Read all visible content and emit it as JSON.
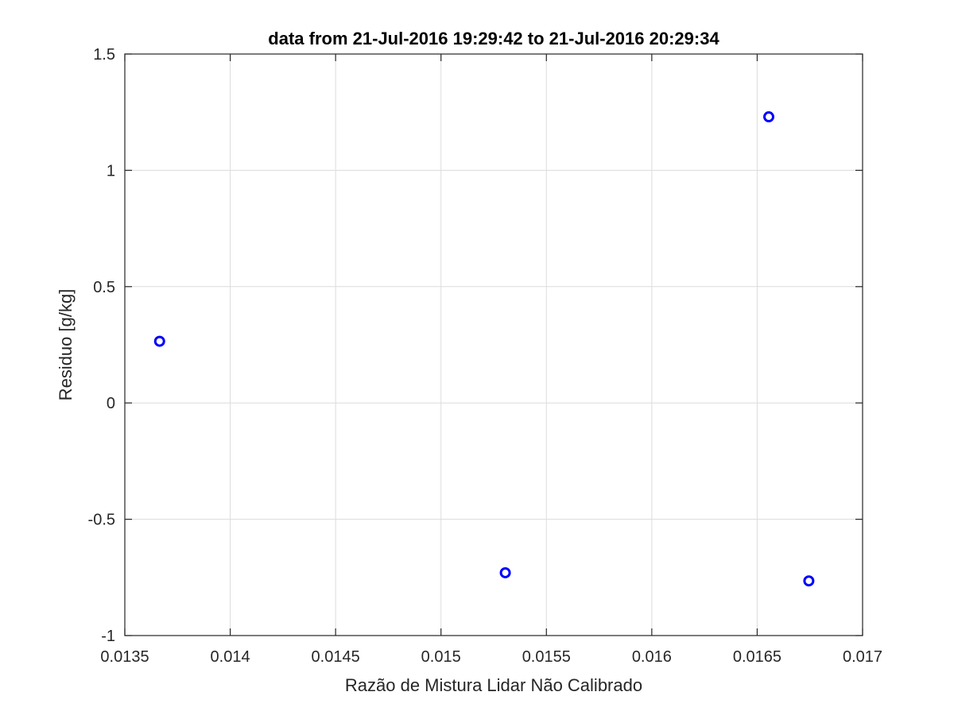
{
  "chart_data": {
    "type": "scatter",
    "title": "data from 21-Jul-2016 19:29:42 to 21-Jul-2016 20:29:34",
    "xlabel": "Razão de Mistura Lidar Não Calibrado",
    "ylabel": "Residuo [g/kg]",
    "xlim": [
      0.0135,
      0.017
    ],
    "ylim": [
      -1,
      1.5
    ],
    "xticks": [
      0.0135,
      0.014,
      0.0145,
      0.015,
      0.0155,
      0.016,
      0.0165,
      0.017
    ],
    "xtick_labels": [
      "0.0135",
      "0.014",
      "0.0145",
      "0.015",
      "0.0155",
      "0.016",
      "0.0165",
      "0.017"
    ],
    "yticks": [
      -1,
      -0.5,
      0,
      0.5,
      1,
      1.5
    ],
    "ytick_labels": [
      "-1",
      "-0.5",
      "0",
      "0.5",
      "1",
      "1.5"
    ],
    "grid": true,
    "marker": "circle",
    "marker_color": "#0000ff",
    "points": [
      {
        "x": 0.013665,
        "y": 0.265
      },
      {
        "x": 0.015305,
        "y": -0.73
      },
      {
        "x": 0.016555,
        "y": 1.23
      },
      {
        "x": 0.016745,
        "y": -0.765
      }
    ]
  }
}
